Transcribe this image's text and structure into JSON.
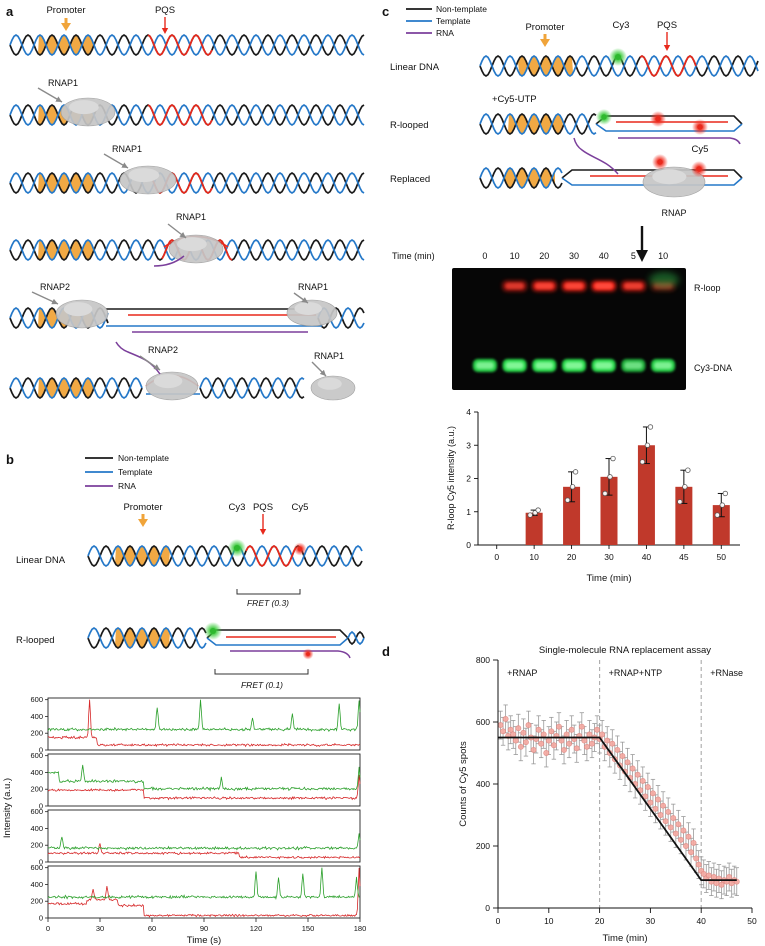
{
  "colors": {
    "non_template": "#1a1a1a",
    "template": "#2578c8",
    "rna": "#7b3f9b",
    "promoter": "#f0a43a",
    "pqs": "#e8291c",
    "cy3": "#2eb82e",
    "cy5": "#e8291c",
    "rnap_gray": "#c6c6c6",
    "trace_green": "#2ca02c",
    "trace_red": "#d62728",
    "scatter_point": "#f5a8a0",
    "error_bar": "#9a9a9a",
    "gel_red_band": "#ff2015",
    "gel_green_band": "#28d84a"
  },
  "panel_a": {
    "label": "a",
    "promoter": "Promoter",
    "pqs": "PQS",
    "annotations": {
      "r2": "RNAP1",
      "r3": "RNAP1",
      "r4": "RNAP1",
      "r5a": "RNAP2",
      "r5b": "RNAP1",
      "r6a": "RNAP2",
      "r6b": "RNAP1"
    }
  },
  "panel_b": {
    "label": "b",
    "legend": [
      "Non-template",
      "Template",
      "RNA"
    ],
    "linear_dna": "Linear DNA",
    "r_looped": "R-looped",
    "promoter": "Promoter",
    "cy3": "Cy3",
    "pqs": "PQS",
    "cy5": "Cy5",
    "fret1": "FRET (0.3)",
    "fret2": "FRET (0.1)"
  },
  "panel_c": {
    "label": "c",
    "legend": [
      "Non-template",
      "Template",
      "RNA"
    ],
    "rows": [
      "Linear DNA",
      "R-looped",
      "Replaced"
    ],
    "promoter": "Promoter",
    "cy3": "Cy3",
    "pqs": "PQS",
    "cy5": "Cy5",
    "cy5_utp": "+Cy5-UTP",
    "rnap": "RNAP",
    "gel": {
      "time_label": "Time (min)",
      "lanes": [
        "0",
        "10",
        "20",
        "30",
        "40",
        "5",
        "10"
      ],
      "band_labels": [
        "R-loop",
        "Cy3-DNA"
      ],
      "red_band_intensity": [
        0,
        0.65,
        0.85,
        0.9,
        1,
        0.75,
        0.35
      ],
      "green_band_intensity": [
        0.95,
        1,
        1,
        1,
        1,
        0.8,
        0.95
      ]
    }
  },
  "panel_d": {
    "label": "d"
  },
  "chart_data": [
    {
      "id": "b_traces",
      "type": "line",
      "panel": "b",
      "xlabel": "Time (s)",
      "ylabel": "Intensity (a.u.)",
      "xlim": [
        0,
        180
      ],
      "ylim": [
        0,
        600
      ],
      "xticks": [
        0,
        30,
        60,
        90,
        120,
        150,
        180
      ],
      "yticks": [
        0,
        200,
        400,
        600
      ],
      "noise": {
        "green": 16,
        "red": 13
      },
      "traces": [
        {
          "green_levels": [
            [
              0,
              180,
              245
            ]
          ],
          "green_spikes": [
            [
              63,
              520
            ],
            [
              88,
              600
            ],
            [
              118,
              380
            ],
            [
              141,
              430
            ],
            [
              168,
              560
            ],
            [
              179.5,
              600
            ]
          ],
          "red_levels": [
            [
              0,
              28,
              150
            ],
            [
              28,
              180,
              60
            ]
          ],
          "red_spikes": [
            [
              24,
              600
            ]
          ]
        },
        {
          "green_levels": [
            [
              0,
              6,
              400
            ],
            [
              6,
              55,
              295
            ],
            [
              55,
              180,
              205
            ]
          ],
          "green_spikes": [
            [
              20,
              500
            ],
            [
              100,
              340
            ],
            [
              179.5,
              450
            ]
          ],
          "red_levels": [
            [
              0,
              55,
              190
            ],
            [
              55,
              180,
              95
            ]
          ],
          "red_spikes": [
            [
              179.5,
              380
            ]
          ]
        },
        {
          "green_levels": [
            [
              0,
              180,
              165
            ]
          ],
          "green_spikes": [
            [
              8,
              300
            ],
            [
              179.5,
              330
            ]
          ],
          "red_levels": [
            [
              0,
              110,
              105
            ],
            [
              110,
              180,
              55
            ]
          ],
          "red_spikes": [
            [
              30,
              220
            ]
          ]
        },
        {
          "green_levels": [
            [
              0,
              180,
              250
            ]
          ],
          "green_spikes": [
            [
              120,
              560
            ],
            [
              133,
              480
            ],
            [
              147,
              530
            ],
            [
              158,
              600
            ],
            [
              178,
              480
            ]
          ],
          "red_levels": [
            [
              0,
              22,
              170
            ],
            [
              22,
              40,
              215
            ],
            [
              40,
              55,
              150
            ],
            [
              55,
              180,
              30
            ]
          ],
          "red_spikes": [
            [
              26,
              350
            ],
            [
              34,
              390
            ],
            [
              179.5,
              600
            ]
          ]
        }
      ]
    },
    {
      "id": "c_bar",
      "type": "bar",
      "panel": "c",
      "xlabel": "Time (min)",
      "ylabel": "R-loop Cy5 intensity (a.u.)",
      "categories": [
        "0",
        "10",
        "20",
        "30",
        "40",
        "45",
        "50"
      ],
      "values": [
        0,
        0.97,
        1.75,
        2.05,
        3.0,
        1.75,
        1.2
      ],
      "errors": [
        0,
        0.08,
        0.45,
        0.55,
        0.55,
        0.5,
        0.35
      ],
      "points": [
        [],
        [
          0.9,
          0.97,
          1.05
        ],
        [
          1.35,
          1.75,
          2.2
        ],
        [
          1.55,
          2.05,
          2.6
        ],
        [
          2.5,
          3.0,
          3.55
        ],
        [
          1.3,
          1.75,
          2.25
        ],
        [
          0.9,
          1.2,
          1.55
        ]
      ],
      "ylim": [
        0,
        4
      ],
      "yticks": [
        0,
        1,
        2,
        3,
        4
      ],
      "bar_color": "#c0392b"
    },
    {
      "id": "d_scatter",
      "type": "scatter",
      "panel": "d",
      "title": "Single-molecule RNA replacement assay",
      "xlabel": "Time (min)",
      "ylabel": "Counts of Cy5 spots",
      "xlim": [
        0,
        50
      ],
      "ylim": [
        0,
        800
      ],
      "xticks": [
        0,
        10,
        20,
        30,
        40,
        50
      ],
      "yticks": [
        0,
        200,
        400,
        600,
        800
      ],
      "dashed_lines_x": [
        20,
        40
      ],
      "annotations": [
        {
          "text": "+RNAP",
          "x": 1
        },
        {
          "text": "+RNAP+NTP",
          "x": 21
        },
        {
          "text": "+RNase",
          "x": 41
        }
      ],
      "fit_line": [
        [
          0,
          550
        ],
        [
          20,
          550
        ],
        [
          40,
          90
        ],
        [
          47,
          90
        ]
      ],
      "error": 45,
      "points": [
        [
          0.5,
          590
        ],
        [
          1,
          570
        ],
        [
          1.5,
          610
        ],
        [
          2,
          555
        ],
        [
          2.5,
          575
        ],
        [
          3,
          560
        ],
        [
          3.5,
          540
        ],
        [
          4,
          580
        ],
        [
          4.5,
          520
        ],
        [
          5,
          565
        ],
        [
          5.5,
          535
        ],
        [
          6,
          590
        ],
        [
          6.5,
          550
        ],
        [
          7,
          510
        ],
        [
          7.5,
          545
        ],
        [
          8,
          575
        ],
        [
          8.5,
          530
        ],
        [
          9,
          560
        ],
        [
          9.5,
          500
        ],
        [
          10,
          540
        ],
        [
          10.5,
          570
        ],
        [
          11,
          525
        ],
        [
          11.5,
          555
        ],
        [
          12,
          585
        ],
        [
          12.5,
          540
        ],
        [
          13,
          510
        ],
        [
          13.5,
          560
        ],
        [
          14,
          530
        ],
        [
          14.5,
          575
        ],
        [
          15,
          545
        ],
        [
          15.5,
          515
        ],
        [
          16,
          555
        ],
        [
          16.5,
          585
        ],
        [
          17,
          540
        ],
        [
          17.5,
          520
        ],
        [
          18,
          560
        ],
        [
          18.5,
          530
        ],
        [
          19,
          550
        ],
        [
          19.5,
          575
        ],
        [
          20,
          545
        ],
        [
          20.5,
          560
        ],
        [
          21,
          520
        ],
        [
          21.5,
          540
        ],
        [
          22,
          500
        ],
        [
          22.5,
          530
        ],
        [
          23,
          480
        ],
        [
          23.5,
          510
        ],
        [
          24,
          460
        ],
        [
          24.5,
          490
        ],
        [
          25,
          440
        ],
        [
          25.5,
          470
        ],
        [
          26,
          420
        ],
        [
          26.5,
          450
        ],
        [
          27,
          400
        ],
        [
          27.5,
          430
        ],
        [
          28,
          380
        ],
        [
          28.5,
          410
        ],
        [
          29,
          360
        ],
        [
          29.5,
          390
        ],
        [
          30,
          340
        ],
        [
          30.5,
          370
        ],
        [
          31,
          320
        ],
        [
          31.5,
          350
        ],
        [
          32,
          300
        ],
        [
          32.5,
          330
        ],
        [
          33,
          280
        ],
        [
          33.5,
          310
        ],
        [
          34,
          260
        ],
        [
          34.5,
          290
        ],
        [
          35,
          240
        ],
        [
          35.5,
          270
        ],
        [
          36,
          220
        ],
        [
          36.5,
          250
        ],
        [
          37,
          200
        ],
        [
          37.5,
          230
        ],
        [
          38,
          180
        ],
        [
          38.5,
          210
        ],
        [
          39,
          160
        ],
        [
          39.5,
          140
        ],
        [
          40,
          120
        ],
        [
          40.5,
          110
        ],
        [
          41,
          95
        ],
        [
          41.5,
          105
        ],
        [
          42,
          85
        ],
        [
          42.5,
          100
        ],
        [
          43,
          80
        ],
        [
          43.5,
          95
        ],
        [
          44,
          75
        ],
        [
          44.5,
          90
        ],
        [
          45,
          85
        ],
        [
          45.5,
          100
        ],
        [
          46,
          80
        ],
        [
          46.5,
          90
        ],
        [
          47,
          85
        ]
      ]
    }
  ]
}
